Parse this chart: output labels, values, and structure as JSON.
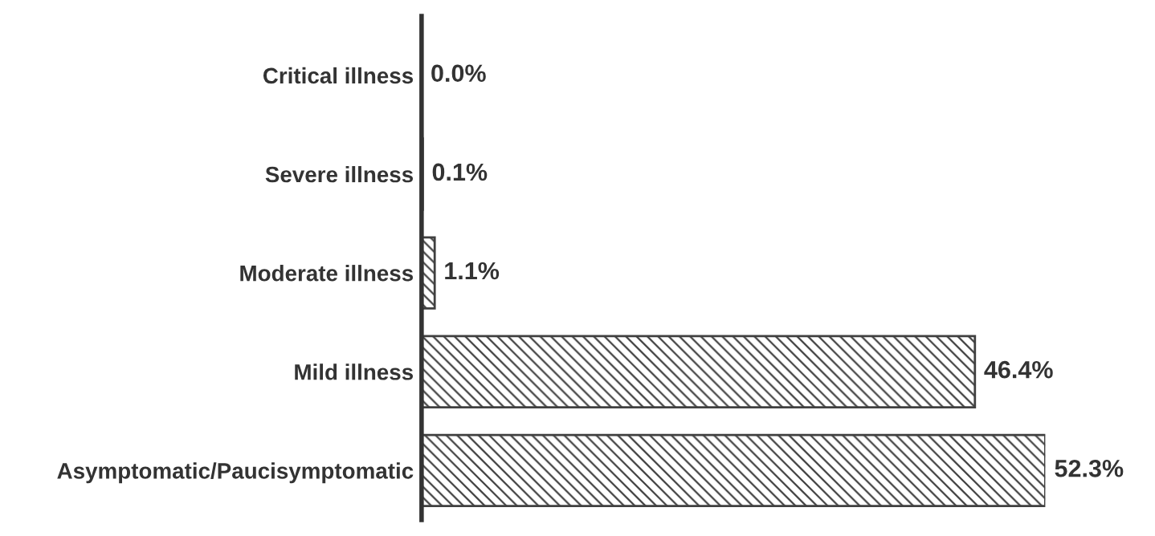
{
  "chart_data": {
    "type": "bar",
    "orientation": "horizontal",
    "categories": [
      "Critical illness",
      "Severe illness",
      "Moderate illness",
      "Mild illness",
      "Asymptomatic/Paucisymptomatic"
    ],
    "values": [
      0.0,
      0.1,
      1.1,
      46.4,
      52.3
    ],
    "value_labels": [
      "0.0%",
      "0.1%",
      "1.1%",
      "46.4%",
      "52.3%"
    ],
    "color": "#404040",
    "grid": false,
    "legend": false
  }
}
